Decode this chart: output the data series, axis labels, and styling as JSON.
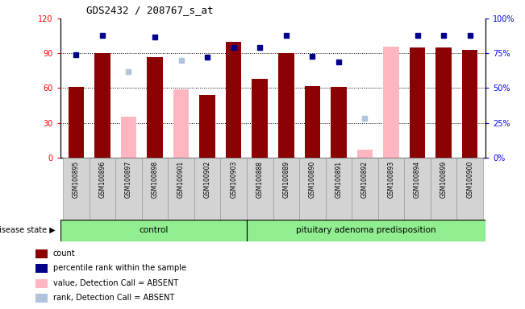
{
  "title": "GDS2432 / 208767_s_at",
  "samples": [
    "GSM100895",
    "GSM100896",
    "GSM100897",
    "GSM100898",
    "GSM100901",
    "GSM100902",
    "GSM100903",
    "GSM100888",
    "GSM100889",
    "GSM100890",
    "GSM100891",
    "GSM100892",
    "GSM100893",
    "GSM100894",
    "GSM100899",
    "GSM100900"
  ],
  "bar_values": [
    61,
    90,
    0,
    87,
    0,
    54,
    100,
    68,
    90,
    62,
    61,
    0,
    0,
    95,
    95,
    93
  ],
  "pink_values": [
    0,
    0,
    35,
    0,
    59,
    0,
    0,
    0,
    0,
    0,
    0,
    7,
    96,
    0,
    0,
    0
  ],
  "blue_squares": [
    74,
    88,
    0,
    87,
    72,
    72,
    79,
    79,
    88,
    73,
    69,
    0,
    0,
    88,
    88,
    88
  ],
  "light_blue_squares": [
    0,
    0,
    62,
    0,
    70,
    0,
    0,
    0,
    0,
    0,
    0,
    28,
    0,
    0,
    0,
    0
  ],
  "absent_mask": [
    false,
    false,
    true,
    false,
    true,
    false,
    false,
    false,
    false,
    false,
    false,
    true,
    true,
    false,
    false,
    false
  ],
  "control_count": 7,
  "group1_label": "control",
  "group2_label": "pituitary adenoma predisposition",
  "ylim_left": [
    0,
    120
  ],
  "yticks_left": [
    0,
    30,
    60,
    90,
    120
  ],
  "ytick_labels_left": [
    "0",
    "30",
    "60",
    "90",
    "120"
  ],
  "ytick_labels_right": [
    "0%",
    "25%",
    "50%",
    "75%",
    "100%"
  ],
  "yticks_right": [
    0,
    25,
    50,
    75,
    100
  ],
  "grid_values": [
    30,
    60,
    90
  ],
  "bar_color": "#8B0000",
  "pink_color": "#FFB6C1",
  "blue_color": "#00008B",
  "lightblue_color": "#B0C4DE",
  "legend_labels": [
    "count",
    "percentile rank within the sample",
    "value, Detection Call = ABSENT",
    "rank, Detection Call = ABSENT"
  ],
  "legend_colors": [
    "#8B0000",
    "#00008B",
    "#FFB6C1",
    "#B0C4DE"
  ],
  "group_bg_color": "#90EE90",
  "disease_state_label": "disease state"
}
